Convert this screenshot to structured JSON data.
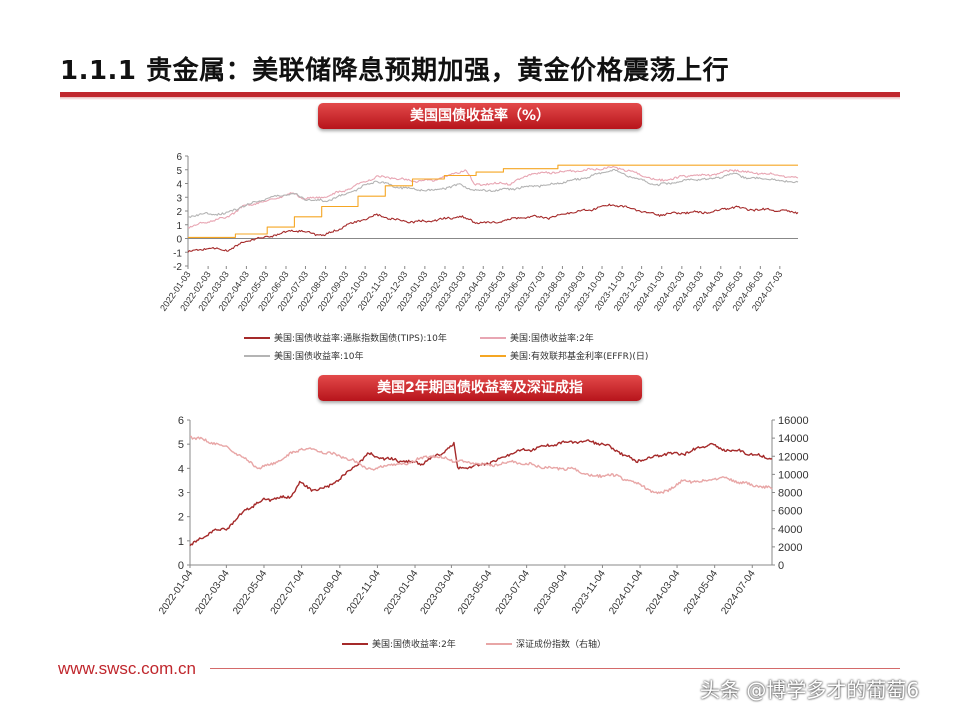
{
  "header": {
    "title": "1.1.1 贵金属：美联储降息预期加强，黄金价格震荡上行"
  },
  "footer": {
    "url": "www.swsc.com.cn",
    "watermark": "头条 @博学多才的葡萄6"
  },
  "chart_data": [
    {
      "type": "line",
      "title": "美国国债收益率（%）",
      "ylim": [
        -2,
        6
      ],
      "yticks": [
        -2,
        -1,
        0,
        1,
        2,
        3,
        4,
        5,
        6
      ],
      "xlim": [
        "2022-01-03",
        "2024-07-31"
      ],
      "xticks": [
        "2022-01-03",
        "2022-02-03",
        "2022-03-03",
        "2022-04-03",
        "2022-05-03",
        "2022-06-03",
        "2022-07-03",
        "2022-08-03",
        "2022-09-03",
        "2022-10-03",
        "2022-11-03",
        "2022-12-03",
        "2023-01-03",
        "2023-02-03",
        "2023-03-03",
        "2023-04-03",
        "2023-05-03",
        "2023-06-03",
        "2023-07-03",
        "2023-08-03",
        "2023-09-03",
        "2023-10-03",
        "2023-11-03",
        "2023-12-03",
        "2024-01-03",
        "2024-02-03",
        "2024-03-03",
        "2024-04-03",
        "2024-05-03",
        "2024-06-03",
        "2024-07-03"
      ],
      "grid": false,
      "legend_position": "bottom",
      "series": [
        {
          "name": "美国:国债收益率:通胀指数国债(TIPS):10年",
          "color": "#a52a2a",
          "points": [
            [
              "2022-01-03",
              -1.0
            ],
            [
              "2022-02-01",
              -0.7
            ],
            [
              "2022-03-08",
              -0.85
            ],
            [
              "2022-04-01",
              -0.2
            ],
            [
              "2022-05-03",
              0.1
            ],
            [
              "2022-06-14",
              0.6
            ],
            [
              "2022-07-01",
              0.5
            ],
            [
              "2022-08-01",
              0.2
            ],
            [
              "2022-09-01",
              0.9
            ],
            [
              "2022-10-21",
              1.7
            ],
            [
              "2022-11-15",
              1.4
            ],
            [
              "2022-12-15",
              1.2
            ],
            [
              "2023-01-15",
              1.3
            ],
            [
              "2023-02-28",
              1.6
            ],
            [
              "2023-03-20",
              1.2
            ],
            [
              "2023-04-15",
              1.1
            ],
            [
              "2023-05-15",
              1.4
            ],
            [
              "2023-06-15",
              1.6
            ],
            [
              "2023-07-15",
              1.5
            ],
            [
              "2023-08-15",
              1.9
            ],
            [
              "2023-09-15",
              2.1
            ],
            [
              "2023-10-20",
              2.5
            ],
            [
              "2023-11-15",
              2.2
            ],
            [
              "2023-12-27",
              1.7
            ],
            [
              "2024-01-15",
              1.8
            ],
            [
              "2024-02-15",
              1.9
            ],
            [
              "2024-03-15",
              1.9
            ],
            [
              "2024-04-25",
              2.3
            ],
            [
              "2024-05-15",
              2.1
            ],
            [
              "2024-06-15",
              2.1
            ],
            [
              "2024-07-31",
              1.9
            ]
          ]
        },
        {
          "name": "美国:国债收益率:2年",
          "color": "#e8a6b3",
          "points": [
            [
              "2022-01-03",
              0.8
            ],
            [
              "2022-02-01",
              1.2
            ],
            [
              "2022-03-01",
              1.5
            ],
            [
              "2022-04-01",
              2.4
            ],
            [
              "2022-05-03",
              2.7
            ],
            [
              "2022-06-14",
              3.3
            ],
            [
              "2022-07-01",
              2.9
            ],
            [
              "2022-08-01",
              3.0
            ],
            [
              "2022-09-01",
              3.5
            ],
            [
              "2022-10-21",
              4.5
            ],
            [
              "2022-11-15",
              4.4
            ],
            [
              "2022-12-15",
              4.2
            ],
            [
              "2023-01-15",
              4.2
            ],
            [
              "2023-03-08",
              5.0
            ],
            [
              "2023-03-20",
              3.9
            ],
            [
              "2023-04-15",
              4.0
            ],
            [
              "2023-05-15",
              4.0
            ],
            [
              "2023-06-15",
              4.7
            ],
            [
              "2023-07-15",
              4.8
            ],
            [
              "2023-08-15",
              4.9
            ],
            [
              "2023-09-15",
              5.0
            ],
            [
              "2023-10-20",
              5.2
            ],
            [
              "2023-11-15",
              4.9
            ],
            [
              "2023-12-27",
              4.2
            ],
            [
              "2024-01-15",
              4.3
            ],
            [
              "2024-02-15",
              4.6
            ],
            [
              "2024-03-15",
              4.6
            ],
            [
              "2024-04-25",
              5.0
            ],
            [
              "2024-05-15",
              4.8
            ],
            [
              "2024-06-15",
              4.7
            ],
            [
              "2024-07-31",
              4.4
            ]
          ]
        },
        {
          "name": "美国:国债收益率:10年",
          "color": "#b4b4b4",
          "points": [
            [
              "2022-01-03",
              1.6
            ],
            [
              "2022-02-01",
              1.8
            ],
            [
              "2022-03-01",
              1.8
            ],
            [
              "2022-04-01",
              2.4
            ],
            [
              "2022-05-03",
              2.9
            ],
            [
              "2022-06-14",
              3.3
            ],
            [
              "2022-07-01",
              2.9
            ],
            [
              "2022-08-01",
              2.7
            ],
            [
              "2022-09-01",
              3.2
            ],
            [
              "2022-10-21",
              4.2
            ],
            [
              "2022-11-15",
              3.8
            ],
            [
              "2022-12-15",
              3.6
            ],
            [
              "2023-01-15",
              3.5
            ],
            [
              "2023-02-28",
              3.9
            ],
            [
              "2023-03-20",
              3.5
            ],
            [
              "2023-04-15",
              3.5
            ],
            [
              "2023-05-15",
              3.6
            ],
            [
              "2023-06-15",
              3.8
            ],
            [
              "2023-07-15",
              3.9
            ],
            [
              "2023-08-15",
              4.2
            ],
            [
              "2023-09-15",
              4.5
            ],
            [
              "2023-10-20",
              5.0
            ],
            [
              "2023-11-15",
              4.5
            ],
            [
              "2023-12-27",
              3.9
            ],
            [
              "2024-01-15",
              4.0
            ],
            [
              "2024-02-15",
              4.3
            ],
            [
              "2024-03-15",
              4.3
            ],
            [
              "2024-04-25",
              4.7
            ],
            [
              "2024-05-15",
              4.4
            ],
            [
              "2024-06-15",
              4.3
            ],
            [
              "2024-07-31",
              4.1
            ]
          ]
        },
        {
          "name": "美国:有效联邦基金利率(EFFR)(日)",
          "color": "#f5a623",
          "step": true,
          "points": [
            [
              "2022-01-03",
              0.08
            ],
            [
              "2022-03-17",
              0.33
            ],
            [
              "2022-05-05",
              0.83
            ],
            [
              "2022-06-16",
              1.58
            ],
            [
              "2022-07-28",
              2.33
            ],
            [
              "2022-09-22",
              3.08
            ],
            [
              "2022-11-03",
              3.83
            ],
            [
              "2022-12-15",
              4.33
            ],
            [
              "2023-02-02",
              4.58
            ],
            [
              "2023-03-23",
              4.83
            ],
            [
              "2023-05-04",
              5.08
            ],
            [
              "2023-07-27",
              5.33
            ],
            [
              "2024-07-31",
              5.33
            ]
          ]
        }
      ]
    },
    {
      "type": "line",
      "title": "美国2年期国债收益率及深证成指",
      "ylim": [
        0,
        6
      ],
      "yticks": [
        0,
        1,
        2,
        3,
        4,
        5,
        6
      ],
      "y2lim": [
        0,
        16000
      ],
      "y2ticks": [
        0,
        2000,
        4000,
        6000,
        8000,
        10000,
        12000,
        14000,
        16000
      ],
      "xlim": [
        "2022-01-04",
        "2024-08-05"
      ],
      "xticks": [
        "2022-01-04",
        "2022-03-04",
        "2022-05-04",
        "2022-07-04",
        "2022-09-04",
        "2022-11-04",
        "2023-01-04",
        "2023-03-04",
        "2023-05-04",
        "2023-07-04",
        "2023-09-04",
        "2023-11-04",
        "2024-01-04",
        "2024-03-04",
        "2024-05-04",
        "2024-07-04"
      ],
      "grid": false,
      "legend_position": "bottom",
      "series": [
        {
          "name": "美国:国债收益率:2年",
          "color": "#a52a2a",
          "axis": "left",
          "points": [
            [
              "2022-01-04",
              0.8
            ],
            [
              "2022-02-10",
              1.4
            ],
            [
              "2022-03-04",
              1.5
            ],
            [
              "2022-04-05",
              2.3
            ],
            [
              "2022-05-04",
              2.7
            ],
            [
              "2022-06-14",
              2.8
            ],
            [
              "2022-07-01",
              3.4
            ],
            [
              "2022-07-20",
              3.1
            ],
            [
              "2022-08-15",
              3.2
            ],
            [
              "2022-09-15",
              3.8
            ],
            [
              "2022-10-21",
              4.6
            ],
            [
              "2022-11-15",
              4.4
            ],
            [
              "2022-12-15",
              4.3
            ],
            [
              "2023-01-15",
              4.2
            ],
            [
              "2023-02-15",
              4.6
            ],
            [
              "2023-03-08",
              5.0
            ],
            [
              "2023-03-14",
              4.0
            ],
            [
              "2023-04-15",
              4.1
            ],
            [
              "2023-05-15",
              4.3
            ],
            [
              "2023-06-15",
              4.7
            ],
            [
              "2023-07-15",
              4.8
            ],
            [
              "2023-08-15",
              5.0
            ],
            [
              "2023-09-15",
              5.1
            ],
            [
              "2023-10-20",
              5.1
            ],
            [
              "2023-11-15",
              4.9
            ],
            [
              "2023-12-27",
              4.3
            ],
            [
              "2024-01-15",
              4.4
            ],
            [
              "2024-02-15",
              4.6
            ],
            [
              "2024-03-15",
              4.6
            ],
            [
              "2024-04-25",
              5.0
            ],
            [
              "2024-05-15",
              4.8
            ],
            [
              "2024-06-15",
              4.7
            ],
            [
              "2024-08-05",
              4.4
            ]
          ]
        },
        {
          "name": "深证成份指数（右轴）",
          "color": "#e8a6a6",
          "axis": "right",
          "points": [
            [
              "2022-01-04",
              14200
            ],
            [
              "2022-02-10",
              13500
            ],
            [
              "2022-03-04",
              13000
            ],
            [
              "2022-04-26",
              10700
            ],
            [
              "2022-05-20",
              11200
            ],
            [
              "2022-07-04",
              12900
            ],
            [
              "2022-08-15",
              12400
            ],
            [
              "2022-09-15",
              11800
            ],
            [
              "2022-10-31",
              10400
            ],
            [
              "2022-11-15",
              11000
            ],
            [
              "2022-12-15",
              11100
            ],
            [
              "2023-01-30",
              12100
            ],
            [
              "2023-03-04",
              11600
            ],
            [
              "2023-05-04",
              11000
            ],
            [
              "2023-06-15",
              11400
            ],
            [
              "2023-07-15",
              11000
            ],
            [
              "2023-08-15",
              10700
            ],
            [
              "2023-09-15",
              10600
            ],
            [
              "2023-10-23",
              9700
            ],
            [
              "2023-11-15",
              10000
            ],
            [
              "2023-12-20",
              9300
            ],
            [
              "2024-02-05",
              7800
            ],
            [
              "2024-03-15",
              9300
            ],
            [
              "2024-04-15",
              9200
            ],
            [
              "2024-05-15",
              9700
            ],
            [
              "2024-06-15",
              9100
            ],
            [
              "2024-08-05",
              8400
            ]
          ]
        }
      ]
    }
  ]
}
